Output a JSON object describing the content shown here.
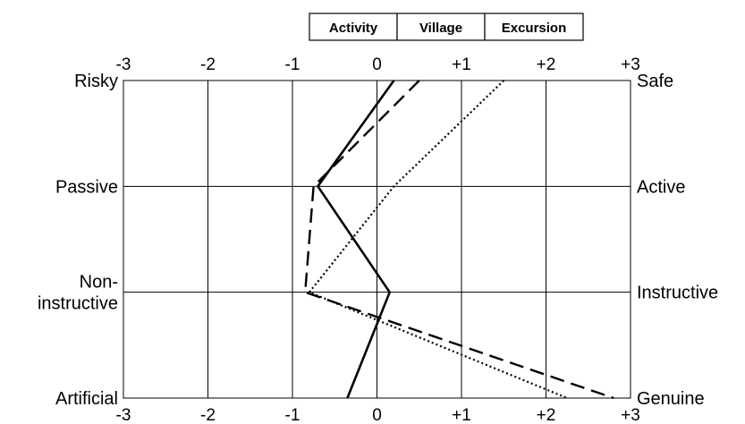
{
  "chart_data": {
    "type": "line",
    "orientation": "profile",
    "x_ticks": [
      "-3",
      "-2",
      "-1",
      "0",
      "+1",
      "+2",
      "+3"
    ],
    "xlim": [
      -3,
      3
    ],
    "grid": true,
    "legend_position": "top",
    "dimensions": [
      {
        "left": "Risky",
        "right": "Safe"
      },
      {
        "left": "Passive",
        "right": "Active"
      },
      {
        "left": "Non-instructive",
        "left_lines": [
          "Non-",
          "instructive"
        ],
        "right": "Instructive"
      },
      {
        "left": "Artificial",
        "right": "Genuine"
      }
    ],
    "series": [
      {
        "name": "Activity",
        "style": "solid",
        "values": [
          0.2,
          -0.7,
          0.15,
          -0.35
        ]
      },
      {
        "name": "Village",
        "style": "dashed",
        "values": [
          0.5,
          -0.75,
          -0.85,
          2.8
        ]
      },
      {
        "name": "Excursion",
        "style": "dotted",
        "values": [
          1.5,
          0.2,
          -0.8,
          2.25
        ]
      }
    ]
  }
}
